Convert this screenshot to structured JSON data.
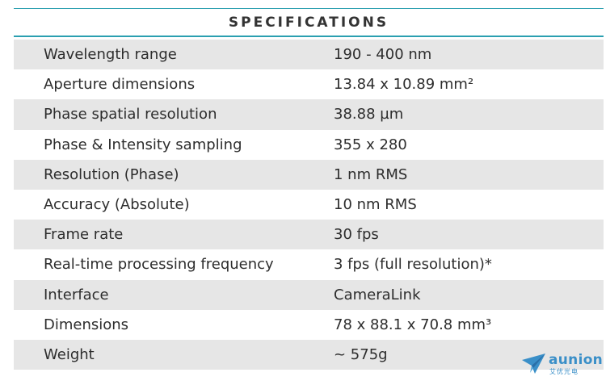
{
  "header": {
    "title": "SPECIFICATIONS"
  },
  "specs": [
    {
      "label": "Wavelength range",
      "value": "190 - 400 nm"
    },
    {
      "label": "Aperture dimensions",
      "value": "13.84 x 10.89 mm²"
    },
    {
      "label": "Phase spatial resolution",
      "value": "38.88 µm"
    },
    {
      "label": "Phase & Intensity sampling",
      "value": "355 x 280"
    },
    {
      "label": "Resolution (Phase)",
      "value": "1 nm RMS"
    },
    {
      "label": "Accuracy (Absolute)",
      "value": "10 nm RMS"
    },
    {
      "label": "Frame rate",
      "value": "30 fps"
    },
    {
      "label": "Real-time processing frequency",
      "value": "3 fps (full resolution)*"
    },
    {
      "label": "Interface",
      "value": "CameraLink"
    },
    {
      "label": "Dimensions",
      "value": "78 x 88.1 x 70.8 mm³"
    },
    {
      "label": "Weight",
      "value": "~ 575g"
    }
  ],
  "watermark": {
    "brand": "aunion",
    "subtitle": "艾优光电",
    "icon": "paper-plane-icon"
  },
  "colors": {
    "accent_rule": "#2a9fb0",
    "row_shade": "#e6e6e6",
    "logo": "#3a8fc8"
  }
}
